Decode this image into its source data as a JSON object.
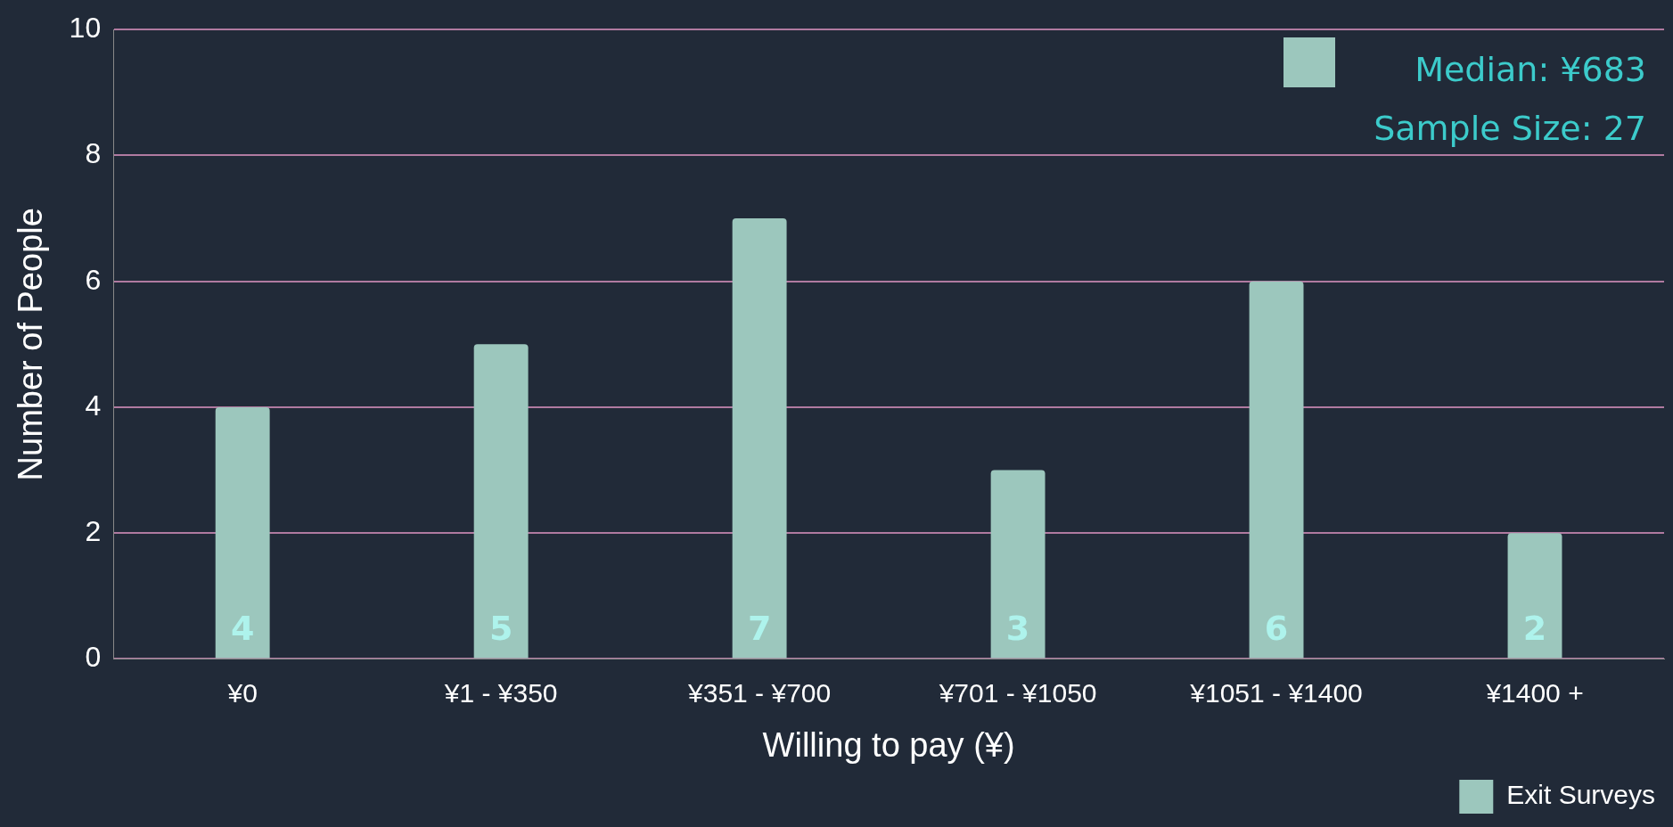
{
  "chart_data": {
    "type": "bar",
    "categories": [
      "¥0",
      "¥1 - ¥350",
      "¥351 - ¥700",
      "¥701 - ¥1050",
      "¥1051 - ¥1400",
      "¥1400 +"
    ],
    "series": [
      {
        "name": "Exit Surveys",
        "color": "#9cc7bd",
        "values": [
          4,
          5,
          7,
          3,
          6,
          2
        ]
      }
    ],
    "ylim": [
      0,
      10
    ],
    "yticks": [
      0,
      2,
      4,
      6,
      8,
      10
    ],
    "grid": "y",
    "legend": "bottom right",
    "data_labels": true,
    "xlabel": "Willing to pay (¥)",
    "ylabel": "Number of People",
    "annotations": [
      "Median: ¥683",
      "Sample Size: 27"
    ]
  }
}
